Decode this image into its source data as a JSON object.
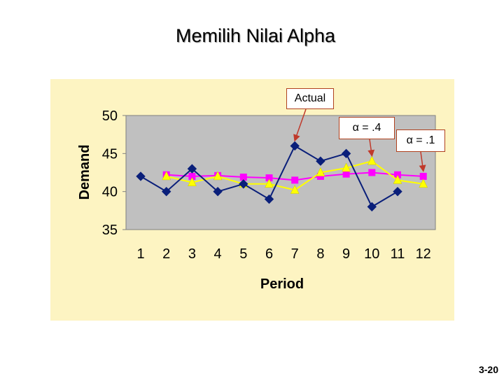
{
  "slide": {
    "title": "Memilih Nilai Alpha",
    "number": "3-20"
  },
  "colors": {
    "panel": "#fdf4c2",
    "plot_area": "#c0c0c0",
    "callout_border": "#b0411e",
    "arrow": "#c0392b"
  },
  "callouts": [
    {
      "text": "Actual",
      "points_to": {
        "series": "Actual",
        "x": 7
      }
    },
    {
      "text": "α = .4",
      "points_to": {
        "series": "α = .4",
        "x": 10
      }
    },
    {
      "text": "α = .1",
      "points_to": {
        "series": "α = .1",
        "x": 12
      }
    }
  ],
  "chart_data": {
    "type": "line",
    "title": "",
    "xlabel": "Period",
    "ylabel": "Demand",
    "x": [
      1,
      2,
      3,
      4,
      5,
      6,
      7,
      8,
      9,
      10,
      11,
      12
    ],
    "ylim": [
      35,
      50
    ],
    "yticks": [
      35,
      40,
      45,
      50
    ],
    "grid": false,
    "legend": "none",
    "series": [
      {
        "name": "Actual",
        "color": "#0a1f7a",
        "marker": "diamond",
        "x": [
          1,
          2,
          3,
          4,
          5,
          6,
          7,
          8,
          9,
          10,
          11
        ],
        "values": [
          42,
          40,
          43,
          40,
          41,
          39,
          46,
          44,
          45,
          38,
          40
        ]
      },
      {
        "name": "α = .4",
        "color": "#ffff00",
        "marker": "triangle",
        "x": [
          2,
          3,
          4,
          5,
          6,
          7,
          8,
          9,
          10,
          11,
          12
        ],
        "values": [
          42,
          41.2,
          42,
          41,
          41,
          40.2,
          42.5,
          43.1,
          44,
          41.5,
          41
        ]
      },
      {
        "name": "α = .1",
        "color": "#ff00ff",
        "marker": "square",
        "x": [
          2,
          3,
          4,
          5,
          6,
          7,
          8,
          9,
          10,
          11,
          12
        ],
        "values": [
          42.2,
          42,
          42.1,
          41.9,
          41.8,
          41.5,
          42,
          42.3,
          42.5,
          42.2,
          42
        ]
      }
    ]
  }
}
